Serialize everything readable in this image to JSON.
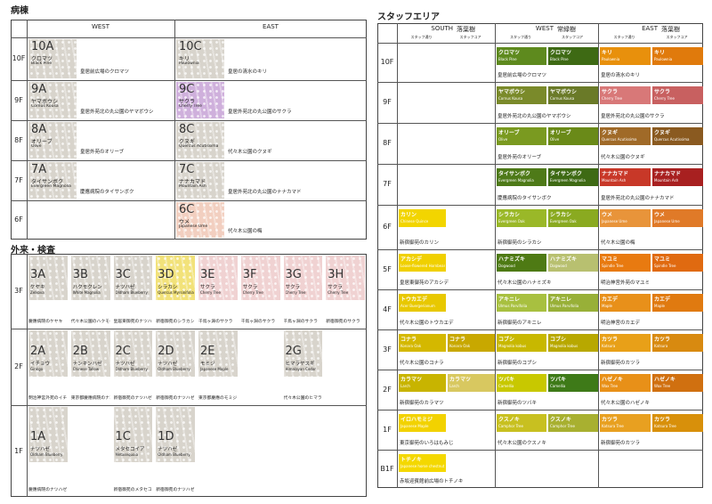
{
  "wards": {
    "title": "病棟",
    "columns": [
      "WEST",
      "EAST"
    ],
    "rows": [
      {
        "floor": "10F",
        "cells": [
          {
            "code": "10A",
            "name": "クロマツ",
            "latin": "Black Pine",
            "place": "皇居前広場のクロマツ",
            "color": "#d8d4cc"
          },
          {
            "code": "10C",
            "name": "キリ",
            "latin": "Paulownia",
            "place": "皇居の清水のキリ",
            "color": "#d8d4cc"
          }
        ]
      },
      {
        "floor": "9F",
        "cells": [
          {
            "code": "9A",
            "name": "ヤマボウシ",
            "latin": "Cornus Kousa",
            "place": "皇居外苑北の丸公園のヤマボウシ",
            "color": "#d8d4cc"
          },
          {
            "code": "9C",
            "name": "サクラ",
            "latin": "Cherry Tree",
            "place": "皇居外苑北の丸公園のサクラ",
            "color": "#cfb0dc"
          }
        ]
      },
      {
        "floor": "8F",
        "cells": [
          {
            "code": "8A",
            "name": "オリーブ",
            "latin": "Olive",
            "place": "皇居外苑のオリーブ",
            "color": "#d8d4cc"
          },
          {
            "code": "8C",
            "name": "クヌギ",
            "latin": "Quercus Acutissima",
            "place": "代々木公園のクヌギ",
            "color": "#d8d4cc"
          }
        ]
      },
      {
        "floor": "7F",
        "cells": [
          {
            "code": "7A",
            "name": "タイサンボク",
            "latin": "Evergreen Magnolia",
            "place": "慶應病院のタイサンボク",
            "color": "#d8d4cc"
          },
          {
            "code": "7C",
            "name": "ナナカマド",
            "latin": "Mountain Ash",
            "place": "皇居外苑北の丸公園のナナカマド",
            "color": "#d8d4cc"
          }
        ]
      },
      {
        "floor": "6F",
        "cells": [
          null,
          {
            "code": "6C",
            "name": "ウメ",
            "latin": "Japanese Ume",
            "place": "代々木公園の梅",
            "color": "#f2cfc0"
          }
        ]
      }
    ]
  },
  "outpatient": {
    "title": "外来・検査",
    "rows": [
      {
        "floor": "3F",
        "cells": [
          {
            "code": "3A",
            "name": "ケヤキ",
            "latin": "Zelkova",
            "place": "慶應病院のケヤキ",
            "color": "#d8d4cc"
          },
          {
            "code": "3B",
            "name": "ハクモクレン",
            "latin": "White Magnolia",
            "place": "代々木公園のハクモクレン",
            "color": "#d8d4cc"
          },
          {
            "code": "3C",
            "name": "ナツハゼ",
            "latin": "Oldham Blueberry",
            "place": "皇居東御苑のナツハゼ",
            "color": "#d8d4cc"
          },
          {
            "code": "3D",
            "name": "シラカシ",
            "latin": "Quercus Myrsinifolia",
            "place": "新宿御苑のシラカシ",
            "color": "#f2e27a"
          },
          {
            "code": "3E",
            "name": "サクラ",
            "latin": "Cherry Tree",
            "place": "千鳥ヶ淵のサクラ",
            "color": "#f0d2d2"
          },
          {
            "code": "3F",
            "name": "サクラ",
            "latin": "Cherry Tree",
            "place": "千鳥ヶ淵のサクラ",
            "color": "#f0d2d2"
          },
          {
            "code": "3G",
            "name": "サクラ",
            "latin": "Cherry Tree",
            "place": "千鳥ヶ淵のサクラ",
            "color": "#f0d2d2"
          },
          {
            "code": "3H",
            "name": "サクラ",
            "latin": "Cherry Tree",
            "place": "新宿御苑のサクラ",
            "color": "#f0d2d2"
          }
        ]
      },
      {
        "floor": "2F",
        "cells": [
          {
            "code": "2A",
            "name": "イチョウ",
            "latin": "Ginkgo",
            "place": "明治神宮外苑のイチョウ",
            "color": "#d8d4cc"
          },
          {
            "code": "2B",
            "name": "ナンキンハゼ",
            "latin": "Chinese Tallow",
            "place": "東京都慶應病院のナンキンハゼ",
            "color": "#d8d4cc"
          },
          {
            "code": "2C",
            "name": "ナツハゼ",
            "latin": "Oldham Blueberry",
            "place": "新宿御苑のナツハゼ",
            "color": "#d8d4cc"
          },
          {
            "code": "2D",
            "name": "ナツハゼ",
            "latin": "Oldham Blueberry",
            "place": "新宿御苑のナツハゼ",
            "color": "#d8d4cc"
          },
          {
            "code": "2E",
            "name": "モミジ",
            "latin": "Japanese Maple",
            "place": "東京都慶應のモミジ",
            "color": "#d8d4cc"
          },
          {
            "code": "2G",
            "name": "ヒマラヤスギ",
            "latin": "Himalayan Cedar",
            "place": "代々木公園のヒマラヤスギ",
            "color": "#d8d4cc"
          }
        ]
      },
      {
        "floor": "1F",
        "cells": [
          {
            "code": "1A",
            "name": "ナツハゼ",
            "latin": "Oldham Blueberry",
            "place": "慶應病院のナツハゼ",
            "color": "#d8d4cc"
          },
          {
            "code": "1C",
            "name": "メタセコイア",
            "latin": "Metasequoia",
            "place": "新宿御苑のメタセコイア",
            "color": "#d8d4cc"
          },
          {
            "code": "1D",
            "name": "ナツハゼ",
            "latin": "Oldham Blueberry",
            "place": "新宿御苑のナツハゼ",
            "color": "#d8d4cc"
          }
        ]
      }
    ]
  },
  "staff": {
    "title": "スタッフエリア",
    "subheaders": [
      "スタッフ通り",
      "スタッフコア"
    ],
    "columns": [
      {
        "dir": "SOUTH",
        "kind": "落葉樹"
      },
      {
        "dir": "WEST",
        "kind": "常緑樹"
      },
      {
        "dir": "EAST",
        "kind": "落葉樹"
      }
    ],
    "rows": [
      {
        "floor": "10F",
        "cells": [
          null,
          {
            "tags": [
              {
                "name": "クロマツ",
                "latin": "Black Pine",
                "color": "#5e8a1e"
              },
              {
                "name": "クロマツ",
                "latin": "Black Pine",
                "color": "#3e6a14"
              }
            ],
            "place": "皇居前広場のクロマツ"
          },
          {
            "tags": [
              {
                "name": "キリ",
                "latin": "Paulownia",
                "color": "#e8900c"
              },
              {
                "name": "キリ",
                "latin": "Paulownia",
                "color": "#e07a0c"
              }
            ],
            "place": "皇居の清水のキリ"
          }
        ]
      },
      {
        "floor": "9F",
        "cells": [
          null,
          {
            "tags": [
              {
                "name": "ヤマボウシ",
                "latin": "Cornus Kousa",
                "color": "#7a8a2a"
              },
              {
                "name": "ヤマボウシ",
                "latin": "Cornus Kousa",
                "color": "#6a7a28"
              }
            ],
            "place": "皇居外苑北の丸公園のヤマボウシ"
          },
          {
            "tags": [
              {
                "name": "サクラ",
                "latin": "Cherry Tree",
                "color": "#d87878"
              },
              {
                "name": "サクラ",
                "latin": "Cherry Tree",
                "color": "#c86060"
              }
            ],
            "place": "皇居外苑北の丸公園のサクラ"
          }
        ]
      },
      {
        "floor": "8F",
        "cells": [
          null,
          {
            "tags": [
              {
                "name": "オリーブ",
                "latin": "Olive",
                "color": "#7a9a20"
              },
              {
                "name": "オリーブ",
                "latin": "Olive",
                "color": "#6a8a18"
              }
            ],
            "place": "皇居外苑のオリーブ"
          },
          {
            "tags": [
              {
                "name": "クヌギ",
                "latin": "Quercus Acutissima",
                "color": "#a06a28"
              },
              {
                "name": "クヌギ",
                "latin": "Quercus Acutissima",
                "color": "#8a5a20"
              }
            ],
            "place": "代々木公園のクヌギ"
          }
        ]
      },
      {
        "floor": "7F",
        "cells": [
          null,
          {
            "tags": [
              {
                "name": "タイサンボク",
                "latin": "Evergreen Magnolia",
                "color": "#4e7a18"
              },
              {
                "name": "タイサンボク",
                "latin": "Evergreen Magnolia",
                "color": "#3e6a14"
              }
            ],
            "place": "慶應病院のタイサンボク"
          },
          {
            "tags": [
              {
                "name": "ナナカマド",
                "latin": "Mountain Ash",
                "color": "#c83828"
              },
              {
                "name": "ナナカマド",
                "latin": "Mountain Ash",
                "color": "#a82020"
              }
            ],
            "place": "皇居外苑北の丸公園のナナカマド"
          }
        ]
      },
      {
        "floor": "6F",
        "cells": [
          {
            "tags": [
              {
                "name": "カリン",
                "latin": "Chinese Quince",
                "color": "#f2d500"
              }
            ],
            "place": "新宿御苑のカリン"
          },
          {
            "tags": [
              {
                "name": "シラカシ",
                "latin": "Evergreen Oak",
                "color": "#9ab828"
              },
              {
                "name": "シラカシ",
                "latin": "Evergreen Oak",
                "color": "#8aaa20"
              }
            ],
            "place": "新宿御苑のシラカシ"
          },
          {
            "tags": [
              {
                "name": "ウメ",
                "latin": "Japanese Ume",
                "color": "#e8943a"
              },
              {
                "name": "ウメ",
                "latin": "Japanese Ume",
                "color": "#e07a28"
              }
            ],
            "place": "代々木公園の梅"
          }
        ]
      },
      {
        "floor": "5F",
        "cells": [
          {
            "tags": [
              {
                "name": "アカシデ",
                "latin": "Loose-flowered Hornbeam",
                "color": "#f0d000"
              }
            ],
            "place": "皇居東御苑のアカシデ"
          },
          {
            "tags": [
              {
                "name": "ハナミズキ",
                "latin": "Dogwood",
                "color": "#4e7a14"
              },
              {
                "name": "ハナミズキ",
                "latin": "Dogwood",
                "color": "#b8c070"
              }
            ],
            "place": "代々木公園のハナミズキ"
          },
          {
            "tags": [
              {
                "name": "マユミ",
                "latin": "Spindle Tree",
                "color": "#e87a10"
              },
              {
                "name": "マユミ",
                "latin": "Spindle Tree",
                "color": "#e06a10"
              }
            ],
            "place": "明治神宮外苑のマユミ"
          }
        ]
      },
      {
        "floor": "4F",
        "cells": [
          {
            "tags": [
              {
                "name": "トウカエデ",
                "latin": "Acer Buergerianum",
                "color": "#e8c800"
              }
            ],
            "place": "代々木公園のトウカエデ"
          },
          {
            "tags": [
              {
                "name": "アキニレ",
                "latin": "Ulmus Parvifolia",
                "color": "#a8c040"
              },
              {
                "name": "アキニレ",
                "latin": "Ulmus Parvifolia",
                "color": "#98b038"
              }
            ],
            "place": "新宿御苑のアキニレ"
          },
          {
            "tags": [
              {
                "name": "カエデ",
                "latin": "Maple",
                "color": "#e8901a"
              },
              {
                "name": "カエデ",
                "latin": "Maple",
                "color": "#e07a10"
              }
            ],
            "place": "明治神宮のカエデ"
          }
        ]
      },
      {
        "floor": "3F",
        "cells": [
          {
            "tags": [
              {
                "name": "コナラ",
                "latin": "Konara Oak",
                "color": "#d4b800"
              },
              {
                "name": "コナラ",
                "latin": "Konara Oak",
                "color": "#c8a800"
              }
            ],
            "place": "代々木公園のコナラ"
          },
          {
            "tags": [
              {
                "name": "コブシ",
                "latin": "Magnolia kobus",
                "color": "#c8b800"
              },
              {
                "name": "コブシ",
                "latin": "Magnolia kobus",
                "color": "#b8a800"
              }
            ],
            "place": "新宿御苑のコブシ"
          },
          {
            "tags": [
              {
                "name": "カツラ",
                "latin": "Katsura",
                "color": "#e8a018"
              },
              {
                "name": "カツラ",
                "latin": "Katsura",
                "color": "#d88a10"
              }
            ],
            "place": "新宿御苑のカツラ"
          }
        ]
      },
      {
        "floor": "2F",
        "cells": [
          {
            "tags": [
              {
                "name": "カラマツ",
                "latin": "Larch",
                "color": "#c8b400"
              },
              {
                "name": "カラマツ",
                "latin": "Larch",
                "color": "#d8c860"
              }
            ],
            "place": "新宿御苑のカラマツ"
          },
          {
            "tags": [
              {
                "name": "ツバキ",
                "latin": "Camellia",
                "color": "#c8c800"
              },
              {
                "name": "ツバキ",
                "latin": "Camellia",
                "color": "#3e7a18"
              }
            ],
            "place": "新宿御苑のツバキ"
          },
          {
            "tags": [
              {
                "name": "ハゼノキ",
                "latin": "Wax Tree",
                "color": "#e89018"
              },
              {
                "name": "ハゼノキ",
                "latin": "Wax Tree",
                "color": "#d07010"
              }
            ],
            "place": "代々木公園のハゼノキ"
          }
        ]
      },
      {
        "floor": "1F",
        "cells": [
          {
            "tags": [
              {
                "name": "イロハモミジ",
                "latin": "Japanese Maple",
                "color": "#f2d200"
              }
            ],
            "place": "東京御苑のいろはもみじ"
          },
          {
            "tags": [
              {
                "name": "クスノキ",
                "latin": "Camphor Tree",
                "color": "#c8c020"
              },
              {
                "name": "クスノキ",
                "latin": "Camphor Tree",
                "color": "#a8b030"
              }
            ],
            "place": "代々木公園のクスノキ"
          },
          {
            "tags": [
              {
                "name": "カツラ",
                "latin": "Katsura Tree",
                "color": "#e8a020"
              },
              {
                "name": "カツラ",
                "latin": "Katsura Tree",
                "color": "#d8900a"
              }
            ],
            "place": "新宿御苑のカツラ"
          }
        ]
      },
      {
        "floor": "B1F",
        "cells": [
          {
            "tags": [
              {
                "name": "トチノキ",
                "latin": "Japanese horse chestnut",
                "color": "#f4d800"
              }
            ],
            "place": "赤坂迎賓館前広場のトチノキ"
          },
          null,
          null
        ]
      }
    ]
  }
}
